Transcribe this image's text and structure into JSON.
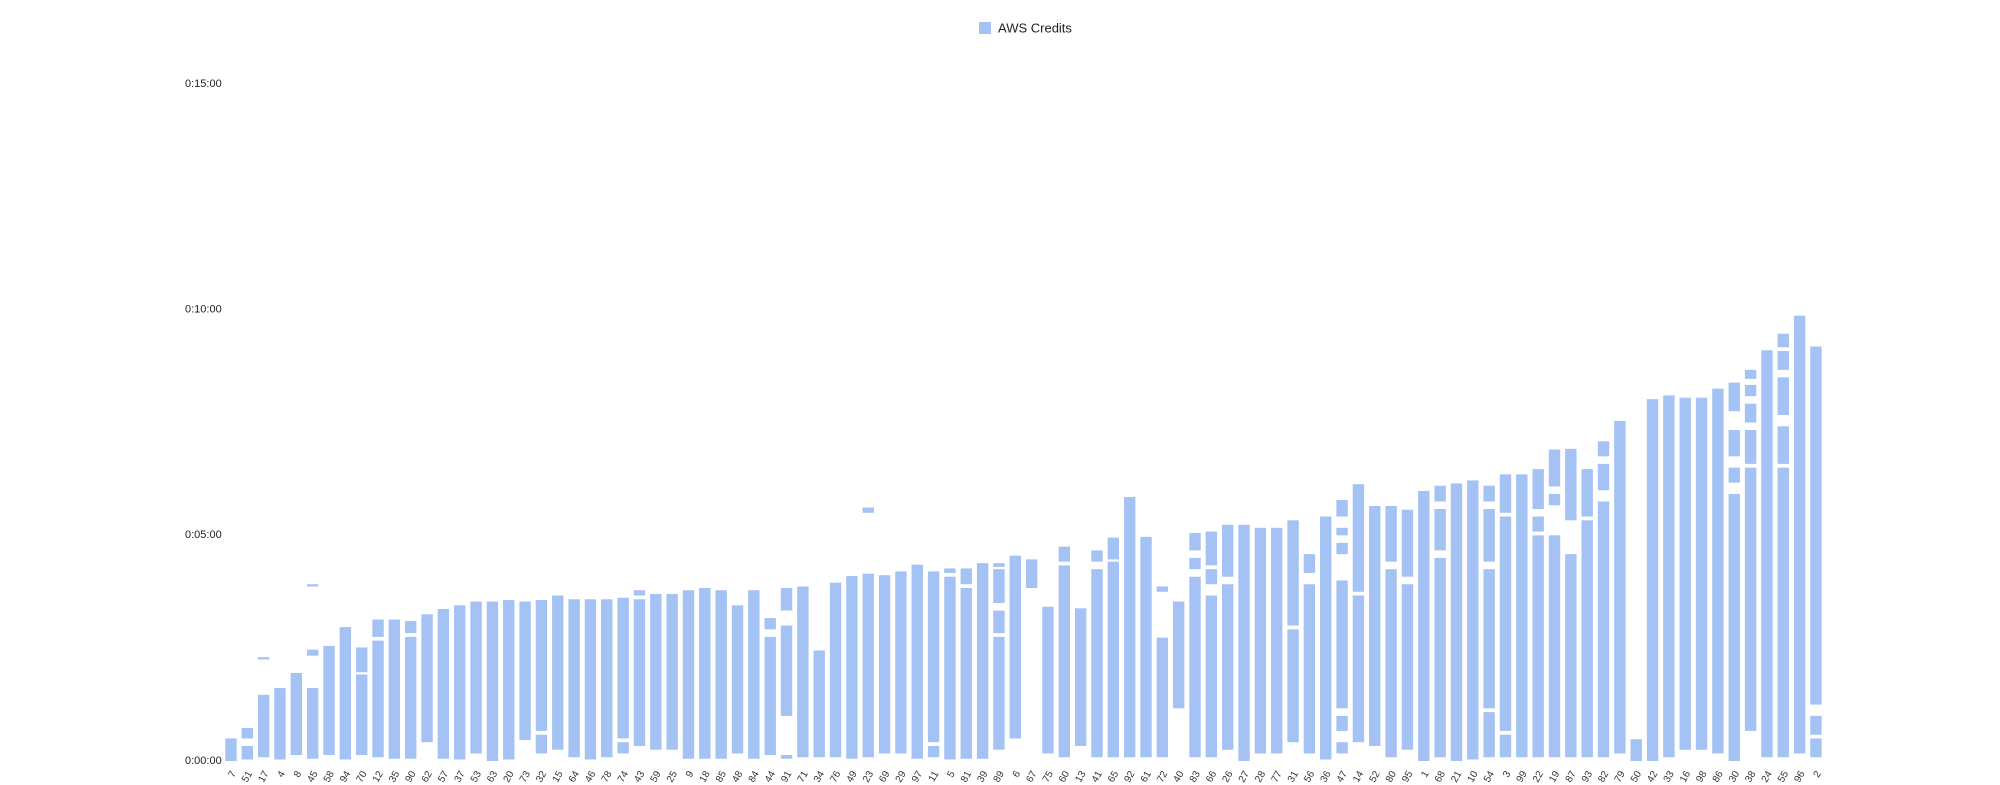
{
  "chart_data": {
    "type": "range-bar",
    "categories": [
      "7",
      "51",
      "17",
      "4",
      "8",
      "45",
      "58",
      "94",
      "70",
      "12",
      "35",
      "90",
      "62",
      "57",
      "37",
      "53",
      "63",
      "20",
      "73",
      "32",
      "15",
      "64",
      "46",
      "78",
      "74",
      "43",
      "59",
      "25",
      "9",
      "18",
      "85",
      "48",
      "84",
      "44",
      "91",
      "71",
      "34",
      "76",
      "49",
      "23",
      "69",
      "29",
      "97",
      "11",
      "5",
      "81",
      "39",
      "89",
      "6",
      "67",
      "75",
      "60",
      "13",
      "41",
      "65",
      "92",
      "61",
      "72",
      "40",
      "83",
      "66",
      "26",
      "27",
      "28",
      "77",
      "31",
      "56",
      "36",
      "47",
      "14",
      "52",
      "80",
      "95",
      "1",
      "68",
      "21",
      "10",
      "54",
      "3",
      "99",
      "22",
      "19",
      "87",
      "93",
      "82",
      "79",
      "50",
      "42",
      "33",
      "16",
      "98",
      "86",
      "30",
      "38",
      "24",
      "55",
      "96",
      "2"
    ],
    "series": [
      {
        "name": "AWS Credits",
        "color": "#a4c2f4",
        "ranges": [
          [
            [
              0,
              30
            ]
          ],
          [
            [
              2,
              20
            ],
            [
              30,
              44
            ]
          ],
          [
            [
              5,
              88
            ],
            [
              135,
              138
            ]
          ],
          [
            [
              2,
              97
            ]
          ],
          [
            [
              8,
              117
            ]
          ],
          [
            [
              3,
              97
            ],
            [
              140,
              148
            ],
            [
              232,
              235
            ]
          ],
          [
            [
              8,
              153
            ]
          ],
          [
            [
              2,
              178
            ]
          ],
          [
            [
              8,
              115
            ],
            [
              118,
              151
            ]
          ],
          [
            [
              5,
              160
            ],
            [
              165,
              188
            ]
          ],
          [
            [
              3,
              188
            ]
          ],
          [
            [
              3,
              165
            ],
            [
              170,
              186
            ]
          ],
          [
            [
              25,
              195
            ]
          ],
          [
            [
              3,
              202
            ]
          ],
          [
            [
              2,
              207
            ]
          ],
          [
            [
              10,
              212
            ]
          ],
          [
            [
              0,
              212
            ]
          ],
          [
            [
              2,
              214
            ]
          ],
          [
            [
              28,
              212
            ]
          ],
          [
            [
              10,
              35
            ],
            [
              40,
              214
            ]
          ],
          [
            [
              15,
              220
            ]
          ],
          [
            [
              5,
              215
            ]
          ],
          [
            [
              2,
              215
            ]
          ],
          [
            [
              5,
              215
            ]
          ],
          [
            [
              10,
              25
            ],
            [
              30,
              217
            ]
          ],
          [
            [
              20,
              215
            ],
            [
              220,
              227
            ]
          ],
          [
            [
              15,
              222
            ]
          ],
          [
            [
              15,
              222
            ]
          ],
          [
            [
              3,
              227
            ]
          ],
          [
            [
              3,
              230
            ]
          ],
          [
            [
              3,
              227
            ]
          ],
          [
            [
              10,
              207
            ]
          ],
          [
            [
              3,
              227
            ]
          ],
          [
            [
              8,
              165
            ],
            [
              175,
              190
            ]
          ],
          [
            [
              3,
              8
            ],
            [
              60,
              180
            ],
            [
              200,
              230
            ]
          ],
          [
            [
              5,
              232
            ]
          ],
          [
            [
              5,
              147
            ]
          ],
          [
            [
              5,
              237
            ]
          ],
          [
            [
              3,
              246
            ]
          ],
          [
            [
              5,
              249
            ],
            [
              330,
              337
            ]
          ],
          [
            [
              10,
              247
            ]
          ],
          [
            [
              10,
              252
            ]
          ],
          [
            [
              3,
              261
            ]
          ],
          [
            [
              5,
              20
            ],
            [
              25,
              252
            ]
          ],
          [
            [
              2,
              245
            ],
            [
              250,
              256
            ]
          ],
          [
            [
              3,
              230
            ],
            [
              235,
              256
            ]
          ],
          [
            [
              3,
              263
            ]
          ],
          [
            [
              15,
              165
            ],
            [
              170,
              200
            ],
            [
              210,
              255
            ],
            [
              258,
              263
            ]
          ],
          [
            [
              30,
              273
            ]
          ],
          [
            [
              230,
              268
            ]
          ],
          [
            [
              10,
              205
            ]
          ],
          [
            [
              5,
              260
            ],
            [
              265,
              285
            ]
          ],
          [
            [
              20,
              203
            ]
          ],
          [
            [
              5,
              255
            ],
            [
              265,
              280
            ]
          ],
          [
            [
              5,
              265
            ],
            [
              268,
              297
            ]
          ],
          [
            [
              5,
              351
            ]
          ],
          [
            [
              5,
              298
            ]
          ],
          [
            [
              5,
              164
            ],
            [
              225,
              232
            ]
          ],
          [
            [
              70,
              212
            ]
          ],
          [
            [
              5,
              245
            ],
            [
              255,
              270
            ],
            [
              280,
              303
            ]
          ],
          [
            [
              5,
              220
            ],
            [
              235,
              255
            ],
            [
              260,
              305
            ]
          ],
          [
            [
              15,
              235
            ],
            [
              245,
              314
            ]
          ],
          [
            [
              0,
              314
            ]
          ],
          [
            [
              10,
              310
            ]
          ],
          [
            [
              10,
              310
            ]
          ],
          [
            [
              25,
              175
            ],
            [
              180,
              320
            ]
          ],
          [
            [
              10,
              235
            ],
            [
              250,
              275
            ]
          ],
          [
            [
              2,
              325
            ]
          ],
          [
            [
              10,
              25
            ],
            [
              40,
              60
            ],
            [
              70,
              240
            ],
            [
              275,
              290
            ],
            [
              300,
              310
            ],
            [
              325,
              347
            ]
          ],
          [
            [
              25,
              220
            ],
            [
              225,
              368
            ]
          ],
          [
            [
              20,
              339
            ]
          ],
          [
            [
              5,
              255
            ],
            [
              265,
              339
            ]
          ],
          [
            [
              15,
              235
            ],
            [
              245,
              334
            ]
          ],
          [
            [
              0,
              359
            ]
          ],
          [
            [
              5,
              270
            ],
            [
              280,
              335
            ],
            [
              345,
              366
            ]
          ],
          [
            [
              0,
              369
            ]
          ],
          [
            [
              2,
              373
            ]
          ],
          [
            [
              5,
              65
            ],
            [
              70,
              255
            ],
            [
              265,
              335
            ],
            [
              345,
              366
            ]
          ],
          [
            [
              5,
              35
            ],
            [
              40,
              325
            ],
            [
              330,
              381
            ]
          ],
          [
            [
              5,
              381
            ]
          ],
          [
            [
              5,
              300
            ],
            [
              305,
              325
            ],
            [
              335,
              388
            ]
          ],
          [
            [
              5,
              300
            ],
            [
              340,
              355
            ],
            [
              365,
              414
            ]
          ],
          [
            [
              5,
              275
            ],
            [
              320,
              415
            ]
          ],
          [
            [
              5,
              320
            ],
            [
              325,
              388
            ]
          ],
          [
            [
              5,
              345
            ],
            [
              360,
              395
            ],
            [
              405,
              425
            ]
          ],
          [
            [
              10,
              452
            ]
          ],
          [
            [
              0,
              29
            ]
          ],
          [
            [
              0,
              481
            ]
          ],
          [
            [
              5,
              486
            ]
          ],
          [
            [
              15,
              483
            ]
          ],
          [
            [
              15,
              483
            ]
          ],
          [
            [
              10,
              495
            ]
          ],
          [
            [
              0,
              355
            ],
            [
              370,
              390
            ],
            [
              405,
              440
            ],
            [
              465,
              503
            ]
          ],
          [
            [
              40,
              390
            ],
            [
              395,
              440
            ],
            [
              450,
              475
            ],
            [
              485,
              500
            ],
            [
              508,
              520
            ]
          ],
          [
            [
              5,
              546
            ]
          ],
          [
            [
              5,
              390
            ],
            [
              395,
              445
            ],
            [
              460,
              510
            ],
            [
              520,
              545
            ],
            [
              550,
              568
            ]
          ],
          [
            [
              10,
              592
            ]
          ],
          [
            [
              5,
              30
            ],
            [
              35,
              60
            ],
            [
              75,
              551
            ]
          ]
        ]
      }
    ],
    "ylim": [
      0,
      900
    ],
    "yticks": [
      {
        "value": 0,
        "label": "0:00:00"
      },
      {
        "value": 300,
        "label": "0:05:00"
      },
      {
        "value": 600,
        "label": "0:10:00"
      },
      {
        "value": 900,
        "label": "0:15:00"
      }
    ]
  }
}
